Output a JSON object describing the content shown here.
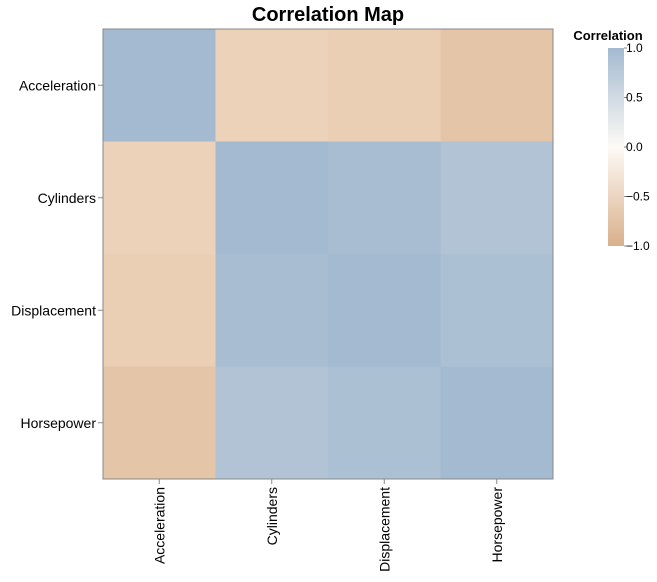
{
  "chart_data": {
    "type": "heatmap",
    "title": "Correlation Map",
    "x_categories": [
      "Acceleration",
      "Cylinders",
      "Displacement",
      "Horsepower"
    ],
    "y_categories": [
      "Acceleration",
      "Cylinders",
      "Displacement",
      "Horsepower"
    ],
    "values": [
      [
        1.0,
        -0.5,
        -0.54,
        -0.69
      ],
      [
        -0.5,
        1.0,
        0.95,
        0.84
      ],
      [
        -0.54,
        0.95,
        1.0,
        0.9
      ],
      [
        -0.69,
        0.84,
        0.9,
        1.0
      ]
    ],
    "legend": {
      "title": "Correlation",
      "ticks": [
        1.0,
        0.5,
        0.0,
        -0.5,
        -1.0
      ],
      "tick_labels": [
        "1.0",
        "0.5",
        "0.0",
        "−0.5",
        "−1.0"
      ],
      "position": "right"
    },
    "color_scale": {
      "domain": [
        -1,
        0,
        1
      ],
      "colors": [
        "#d9b08c",
        "#fdf3e6",
        "#a3bad1"
      ]
    },
    "grid": false
  }
}
